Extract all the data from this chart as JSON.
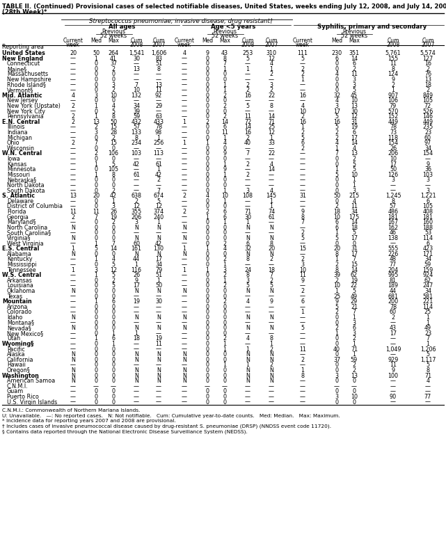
{
  "title1": "TABLE II. (Continued) Provisional cases of selected notifiable diseases, United States, weeks ending July 12, 2008, and July 14, 2007",
  "title2": "(28th Week)*",
  "col_group_title": "Streptococcus pneumoniae, invasive disease, drug resistant†",
  "sub_group1": "All ages",
  "sub_group2": "Age <5 years",
  "sub_group3": "Syphilis, primary and secondary",
  "rows": [
    [
      "United States",
      "20",
      "50",
      "264",
      "1,541",
      "1,606",
      "4",
      "9",
      "43",
      "253",
      "310",
      "111",
      "230",
      "351",
      "5,761",
      "5,574"
    ],
    [
      "New England",
      "—",
      "1",
      "41",
      "30",
      "83",
      "—",
      "0",
      "8",
      "5",
      "12",
      "5",
      "6",
      "14",
      "155",
      "127"
    ],
    [
      "Connecticut",
      "—",
      "0",
      "37",
      "—",
      "51",
      "—",
      "0",
      "7",
      "—",
      "4",
      "—",
      "0",
      "6",
      "11",
      "16"
    ],
    [
      "Maine§",
      "—",
      "0",
      "2",
      "13",
      "8",
      "—",
      "0",
      "1",
      "1",
      "1",
      "2",
      "0",
      "2",
      "8",
      "2"
    ],
    [
      "Massachusetts",
      "—",
      "0",
      "0",
      "—",
      "—",
      "—",
      "0",
      "0",
      "—",
      "2",
      "2",
      "4",
      "11",
      "124",
      "76"
    ],
    [
      "New Hampshire",
      "—",
      "0",
      "0",
      "—",
      "—",
      "—",
      "0",
      "0",
      "—",
      "—",
      "1",
      "0",
      "3",
      "9",
      "13"
    ],
    [
      "Rhode Island§",
      "—",
      "0",
      "3",
      "7",
      "13",
      "—",
      "0",
      "1",
      "2",
      "3",
      "—",
      "0",
      "3",
      "2",
      "18"
    ],
    [
      "Vermont§",
      "—",
      "0",
      "2",
      "10",
      "11",
      "—",
      "0",
      "1",
      "2",
      "2",
      "—",
      "0",
      "5",
      "1",
      "2"
    ],
    [
      "Mid. Atlantic",
      "4",
      "3",
      "10",
      "132",
      "92",
      "—",
      "0",
      "2",
      "16",
      "22",
      "16",
      "32",
      "45",
      "907",
      "849"
    ],
    [
      "New Jersey",
      "—",
      "0",
      "0",
      "—",
      "—",
      "—",
      "0",
      "0",
      "—",
      "—",
      "—",
      "4",
      "10",
      "106",
      "105"
    ],
    [
      "New York (Upstate)",
      "2",
      "1",
      "4",
      "34",
      "29",
      "—",
      "0",
      "2",
      "5",
      "8",
      "4",
      "3",
      "13",
      "79",
      "72"
    ],
    [
      "New York City",
      "—",
      "0",
      "5",
      "39",
      "—",
      "—",
      "0",
      "0",
      "—",
      "—",
      "10",
      "17",
      "30",
      "570",
      "526"
    ],
    [
      "Pennsylvania",
      "2",
      "1",
      "8",
      "59",
      "63",
      "—",
      "0",
      "2",
      "11",
      "14",
      "2",
      "5",
      "12",
      "152",
      "146"
    ],
    [
      "E.N. Central",
      "2",
      "13",
      "50",
      "432",
      "433",
      "1",
      "2",
      "14",
      "72",
      "71",
      "16",
      "16",
      "31",
      "449",
      "449"
    ],
    [
      "Illinois",
      "—",
      "2",
      "15",
      "57",
      "78",
      "—",
      "0",
      "6",
      "14",
      "25",
      "1",
      "5",
      "19",
      "78",
      "235"
    ],
    [
      "Indiana",
      "—",
      "3",
      "28",
      "133",
      "98",
      "—",
      "0",
      "11",
      "16",
      "12",
      "2",
      "2",
      "6",
      "73",
      "23"
    ],
    [
      "Michigan",
      "—",
      "0",
      "2",
      "8",
      "1",
      "—",
      "0",
      "1",
      "2",
      "1",
      "5",
      "2",
      "17",
      "118",
      "60"
    ],
    [
      "Ohio",
      "2",
      "7",
      "15",
      "234",
      "256",
      "1",
      "1",
      "4",
      "40",
      "33",
      "6",
      "4",
      "14",
      "154",
      "97"
    ],
    [
      "Wisconsin",
      "—",
      "0",
      "0",
      "—",
      "—",
      "—",
      "0",
      "0",
      "—",
      "—",
      "2",
      "1",
      "4",
      "26",
      "34"
    ],
    [
      "W.N. Central",
      "—",
      "2",
      "106",
      "103",
      "113",
      "—",
      "0",
      "9",
      "7",
      "22",
      "—",
      "7",
      "13",
      "206",
      "154"
    ],
    [
      "Iowa",
      "—",
      "0",
      "0",
      "—",
      "—",
      "—",
      "0",
      "0",
      "—",
      "—",
      "—",
      "0",
      "2",
      "10",
      "—"
    ],
    [
      "Kansas",
      "—",
      "1",
      "5",
      "42",
      "61",
      "—",
      "0",
      "1",
      "2",
      "4",
      "—",
      "0",
      "5",
      "17",
      "9"
    ],
    [
      "Minnesota",
      "—",
      "0",
      "105",
      "—",
      "1",
      "—",
      "0",
      "9",
      "—",
      "14",
      "—",
      "1",
      "5",
      "50",
      "36"
    ],
    [
      "Missouri",
      "—",
      "1",
      "8",
      "61",
      "42",
      "—",
      "0",
      "1",
      "2",
      "—",
      "—",
      "5",
      "10",
      "126",
      "103"
    ],
    [
      "Nebraska§",
      "—",
      "0",
      "0",
      "—",
      "2",
      "—",
      "0",
      "0",
      "—",
      "—",
      "—",
      "0",
      "1",
      "3",
      "3"
    ],
    [
      "North Dakota",
      "—",
      "0",
      "0",
      "—",
      "—",
      "—",
      "0",
      "0",
      "—",
      "—",
      "—",
      "0",
      "1",
      "—",
      "—"
    ],
    [
      "South Dakota",
      "—",
      "0",
      "2",
      "—",
      "7",
      "—",
      "0",
      "1",
      "3",
      "4",
      "—",
      "0",
      "3",
      "—",
      "3"
    ],
    [
      "S. Atlantic",
      "13",
      "20",
      "42",
      "638",
      "674",
      "2",
      "4",
      "10",
      "108",
      "145",
      "31",
      "50",
      "215",
      "1,245",
      "1,221"
    ],
    [
      "Delaware",
      "—",
      "0",
      "1",
      "2",
      "5",
      "—",
      "0",
      "1",
      "—",
      "1",
      "—",
      "0",
      "4",
      "8",
      "6"
    ],
    [
      "District of Columbia",
      "—",
      "0",
      "3",
      "12",
      "12",
      "—",
      "0",
      "0",
      "—",
      "1",
      "—",
      "2",
      "11",
      "57",
      "105"
    ],
    [
      "Florida",
      "11",
      "11",
      "26",
      "355",
      "374",
      "2",
      "2",
      "6",
      "71",
      "74",
      "9",
      "18",
      "34",
      "486",
      "408"
    ],
    [
      "Georgia",
      "2",
      "7",
      "19",
      "206",
      "240",
      "—",
      "1",
      "6",
      "30",
      "61",
      "8",
      "10",
      "175",
      "181",
      "181"
    ],
    [
      "Maryland§",
      "—",
      "0",
      "2",
      "3",
      "1",
      "—",
      "0",
      "1",
      "1",
      "—",
      "7",
      "6",
      "14",
      "167",
      "160"
    ],
    [
      "North Carolina",
      "N",
      "0",
      "0",
      "N",
      "N",
      "N",
      "0",
      "0",
      "N",
      "N",
      "—",
      "6",
      "18",
      "162",
      "188"
    ],
    [
      "South Carolina§",
      "—",
      "0",
      "0",
      "—",
      "—",
      "—",
      "0",
      "0",
      "—",
      "—",
      "2",
      "1",
      "5",
      "46",
      "53"
    ],
    [
      "Virginia§",
      "N",
      "0",
      "0",
      "N",
      "N",
      "N",
      "0",
      "0",
      "N",
      "N",
      "5",
      "5",
      "17",
      "138",
      "114"
    ],
    [
      "West Virginia",
      "—",
      "1",
      "7",
      "60",
      "42",
      "—",
      "0",
      "2",
      "6",
      "8",
      "—",
      "0",
      "0",
      "—",
      "6"
    ],
    [
      "E.S. Central",
      "1",
      "5",
      "14",
      "161",
      "130",
      "1",
      "1",
      "4",
      "32",
      "20",
      "15",
      "20",
      "31",
      "555",
      "423"
    ],
    [
      "Alabama",
      "N",
      "0",
      "0",
      "N",
      "N",
      "N",
      "0",
      "0",
      "N",
      "N",
      "—",
      "8",
      "17",
      "226",
      "171"
    ],
    [
      "Kentucky",
      "—",
      "1",
      "4",
      "44",
      "17",
      "—",
      "0",
      "2",
      "8",
      "2",
      "2",
      "1",
      "7",
      "48",
      "34"
    ],
    [
      "Mississippi",
      "—",
      "0",
      "5",
      "1",
      "34",
      "—",
      "0",
      "1",
      "—",
      "—",
      "3",
      "2",
      "15",
      "77",
      "59"
    ],
    [
      "Tennessee",
      "1",
      "3",
      "12",
      "116",
      "79",
      "1",
      "1",
      "3",
      "24",
      "18",
      "10",
      "8",
      "14",
      "204",
      "159"
    ],
    [
      "W.S. Central",
      "—",
      "1",
      "5",
      "26",
      "51",
      "—",
      "0",
      "2",
      "8",
      "7",
      "11",
      "39",
      "62",
      "995",
      "924"
    ],
    [
      "Arkansas",
      "—",
      "0",
      "2",
      "9",
      "1",
      "—",
      "0",
      "1",
      "3",
      "2",
      "9",
      "2",
      "19",
      "81",
      "62"
    ],
    [
      "Louisiana",
      "—",
      "0",
      "5",
      "17",
      "50",
      "—",
      "0",
      "2",
      "5",
      "5",
      "—",
      "10",
      "22",
      "189",
      "247"
    ],
    [
      "Oklahoma",
      "N",
      "0",
      "0",
      "N",
      "N",
      "N",
      "0",
      "0",
      "N",
      "N",
      "2",
      "1",
      "5",
      "44",
      "34"
    ],
    [
      "Texas",
      "—",
      "0",
      "0",
      "—",
      "—",
      "—",
      "0",
      "0",
      "—",
      "—",
      "—",
      "25",
      "49",
      "681",
      "581"
    ],
    [
      "Mountain",
      "—",
      "1",
      "6",
      "19",
      "30",
      "—",
      "0",
      "2",
      "4",
      "9",
      "6",
      "9",
      "29",
      "200",
      "221"
    ],
    [
      "Arizona",
      "—",
      "0",
      "0",
      "—",
      "—",
      "—",
      "0",
      "0",
      "—",
      "—",
      "—",
      "5",
      "21",
      "78",
      "114"
    ],
    [
      "Colorado",
      "—",
      "0",
      "0",
      "—",
      "—",
      "—",
      "0",
      "0",
      "—",
      "—",
      "1",
      "2",
      "7",
      "60",
      "25"
    ],
    [
      "Idaho",
      "N",
      "0",
      "0",
      "N",
      "N",
      "N",
      "0",
      "0",
      "N",
      "N",
      "—",
      "0",
      "1",
      "2",
      "1"
    ],
    [
      "Montana§",
      "—",
      "0",
      "0",
      "—",
      "—",
      "—",
      "0",
      "0",
      "—",
      "—",
      "—",
      "0",
      "3",
      "—",
      "1"
    ],
    [
      "Nevada§",
      "N",
      "0",
      "0",
      "N",
      "N",
      "N",
      "0",
      "0",
      "N",
      "N",
      "5",
      "2",
      "6",
      "43",
      "49"
    ],
    [
      "New Mexico§",
      "—",
      "0",
      "1",
      "1",
      "—",
      "—",
      "0",
      "0",
      "—",
      "—",
      "—",
      "1",
      "3",
      "17",
      "23"
    ],
    [
      "Utah",
      "—",
      "1",
      "6",
      "18",
      "19",
      "—",
      "0",
      "2",
      "4",
      "8",
      "—",
      "0",
      "2",
      "—",
      "7"
    ],
    [
      "Wyoming§",
      "—",
      "0",
      "1",
      "—",
      "11",
      "—",
      "0",
      "1",
      "—",
      "1",
      "—",
      "0",
      "1",
      "—",
      "1"
    ],
    [
      "Pacific",
      "—",
      "0",
      "0",
      "—",
      "—",
      "—",
      "0",
      "1",
      "1",
      "2",
      "11",
      "40",
      "71",
      "1,049",
      "1,206"
    ],
    [
      "Alaska",
      "N",
      "0",
      "0",
      "N",
      "N",
      "N",
      "0",
      "0",
      "N",
      "N",
      "—",
      "0",
      "1",
      "—",
      "5"
    ],
    [
      "California",
      "N",
      "0",
      "0",
      "N",
      "N",
      "N",
      "0",
      "0",
      "N",
      "N",
      "2",
      "37",
      "59",
      "929",
      "1,117"
    ],
    [
      "Hawaii",
      "—",
      "0",
      "0",
      "—",
      "—",
      "—",
      "0",
      "1",
      "1",
      "2",
      "—",
      "0",
      "2",
      "11",
      "5"
    ],
    [
      "Oregon§",
      "N",
      "0",
      "0",
      "N",
      "N",
      "N",
      "0",
      "0",
      "N",
      "N",
      "1",
      "0",
      "2",
      "9",
      "8"
    ],
    [
      "Washington",
      "N",
      "0",
      "0",
      "N",
      "N",
      "N",
      "0",
      "0",
      "N",
      "N",
      "8",
      "3",
      "13",
      "100",
      "71"
    ],
    [
      "American Samoa",
      "N",
      "0",
      "0",
      "N",
      "N",
      "N",
      "0",
      "0",
      "N",
      "N",
      "—",
      "0",
      "0",
      "—",
      "4"
    ],
    [
      "C.N.M.I.",
      "—",
      "—",
      "—",
      "—",
      "—",
      "—",
      "—",
      "—",
      "—",
      "—",
      "—",
      "—",
      "—",
      "—",
      "—"
    ],
    [
      "Guam",
      "—",
      "0",
      "0",
      "—",
      "—",
      "—",
      "0",
      "0",
      "—",
      "—",
      "—",
      "0",
      "0",
      "—",
      "—"
    ],
    [
      "Puerto Rico",
      "—",
      "0",
      "0",
      "—",
      "—",
      "—",
      "0",
      "0",
      "—",
      "—",
      "—",
      "3",
      "10",
      "90",
      "77"
    ],
    [
      "U.S. Virgin Islands",
      "—",
      "0",
      "0",
      "—",
      "—",
      "—",
      "0",
      "0",
      "—",
      "—",
      "—",
      "0",
      "0",
      "—",
      "—"
    ]
  ],
  "bold_rows": [
    0,
    1,
    8,
    13,
    19,
    27,
    37,
    42,
    47,
    55,
    61
  ],
  "footnotes": [
    "C.N.M.I.: Commonwealth of Northern Mariana Islands.",
    "U: Unavailable.   —: No reported cases.   N: Not notifiable.   Cum: Cumulative year-to-date counts.   Med: Median.   Max: Maximum.",
    "* Incidence data for reporting years 2007 and 2008 are provisional.",
    "† Includes cases of invasive pneumococcal disease caused by drug-resistant S. pneumoniae (DRSP) (NNDSS event code 11720).",
    "§ Contains data reported through the National Electronic Disease Surveillance System (NEDSS)."
  ]
}
